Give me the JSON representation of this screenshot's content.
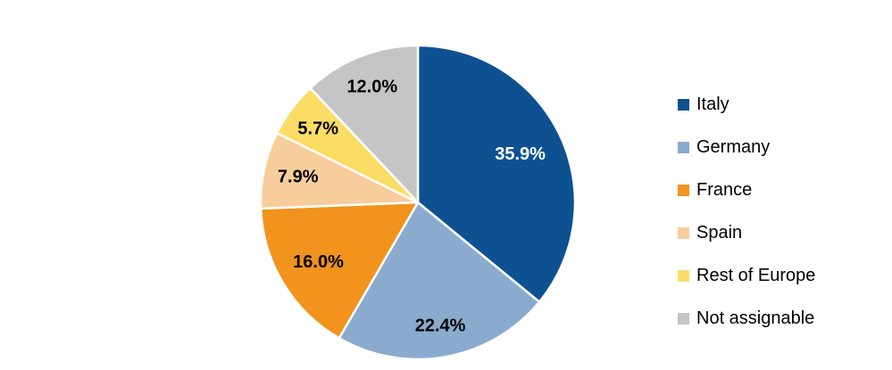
{
  "chart_data": {
    "type": "pie",
    "title": "",
    "start_angle_deg": 0,
    "direction": "clockwise",
    "legend_position": "right",
    "background_color": "#FFFFFF",
    "separator_color": "#FFFFFF",
    "slices": [
      {
        "label": "Italy",
        "value": 35.9,
        "display": "35.9%",
        "color": "#0E5191",
        "label_color": "#FFFFFF"
      },
      {
        "label": "Germany",
        "value": 22.4,
        "display": "22.4%",
        "color": "#8AABCD",
        "label_color": "#000000"
      },
      {
        "label": "France",
        "value": 16.0,
        "display": "16.0%",
        "color": "#F1931D",
        "label_color": "#000000"
      },
      {
        "label": "Spain",
        "value": 7.9,
        "display": "7.9%",
        "color": "#F8CD9C",
        "label_color": "#000000"
      },
      {
        "label": "Rest of Europe",
        "value": 5.7,
        "display": "5.7%",
        "color": "#FADC66",
        "label_color": "#000000"
      },
      {
        "label": "Not assignable",
        "value": 12.0,
        "display": "12.0%",
        "color": "#C5C5C6",
        "label_color": "#000000"
      }
    ]
  }
}
